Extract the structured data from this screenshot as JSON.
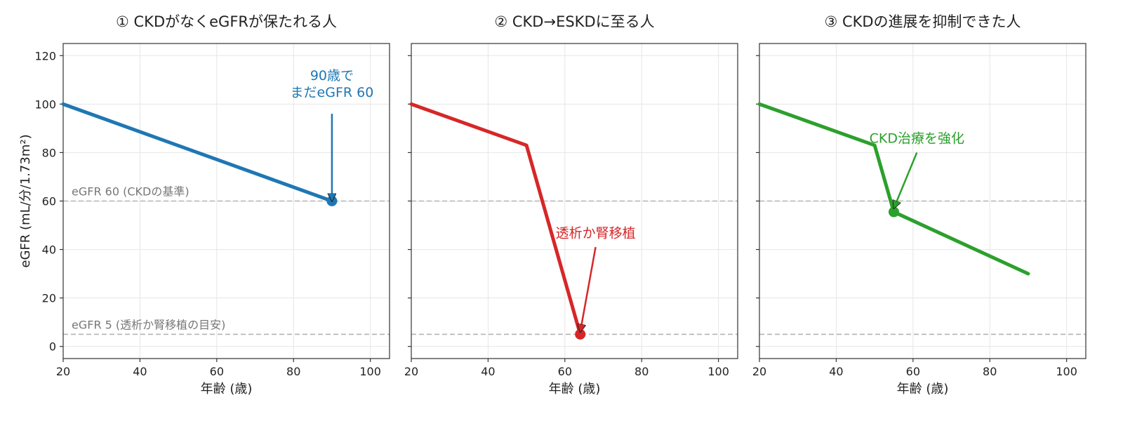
{
  "chart_data": [
    {
      "type": "line",
      "title": "① CKDがなくeGFRが保たれる人",
      "xlabel": "年齢 (歳)",
      "ylabel": "eGFR (mL/分/1.73m²)",
      "xlim": [
        20,
        105
      ],
      "ylim": [
        -5,
        125
      ],
      "xticks": [
        20,
        40,
        60,
        80,
        100
      ],
      "yticks": [
        0,
        20,
        40,
        60,
        80,
        100,
        120
      ],
      "grid": true,
      "color": "#1f77b4",
      "series": [
        {
          "x": [
            20,
            90
          ],
          "y": [
            100,
            60
          ]
        }
      ],
      "marker": {
        "x": 90,
        "y": 60
      },
      "annotation": {
        "lines": [
          "90歳で",
          "まだeGFR 60"
        ],
        "text_at": {
          "x": 90,
          "y": 103
        },
        "arrow_from": {
          "x": 90,
          "y": 96
        },
        "arrow_to": {
          "x": 90,
          "y": 60
        },
        "color": "#1f77b4"
      },
      "reference_lines": [
        {
          "y": 60,
          "label": "eGFR 60 (CKDの基準)"
        },
        {
          "y": 5,
          "label": "eGFR 5 (透析か腎移植の目安)"
        }
      ]
    },
    {
      "type": "line",
      "title": "② CKD→ESKDに至る人",
      "xlabel": "年齢 (歳)",
      "ylabel": "",
      "xlim": [
        20,
        105
      ],
      "ylim": [
        -5,
        125
      ],
      "xticks": [
        20,
        40,
        60,
        80,
        100
      ],
      "yticks": [
        0,
        20,
        40,
        60,
        80,
        100,
        120
      ],
      "grid": true,
      "color": "#d62728",
      "series": [
        {
          "x": [
            20,
            50,
            64
          ],
          "y": [
            100,
            83,
            5
          ]
        }
      ],
      "marker": {
        "x": 64,
        "y": 5
      },
      "annotation": {
        "lines": [
          "透析か腎移植"
        ],
        "text_at": {
          "x": 68,
          "y": 45
        },
        "arrow_from": {
          "x": 68,
          "y": 41
        },
        "arrow_to": {
          "x": 64,
          "y": 6
        },
        "color": "#d62728"
      },
      "reference_lines": [
        {
          "y": 60,
          "label": ""
        },
        {
          "y": 5,
          "label": ""
        }
      ]
    },
    {
      "type": "line",
      "title": "③ CKDの進展を抑制できた人",
      "xlabel": "年齢 (歳)",
      "ylabel": "",
      "xlim": [
        20,
        105
      ],
      "ylim": [
        -5,
        125
      ],
      "xticks": [
        20,
        40,
        60,
        80,
        100
      ],
      "yticks": [
        0,
        20,
        40,
        60,
        80,
        100,
        120
      ],
      "grid": true,
      "color": "#2ca02c",
      "series": [
        {
          "x": [
            20,
            50,
            55,
            90
          ],
          "y": [
            100,
            83,
            55.5,
            30
          ]
        }
      ],
      "marker": {
        "x": 55,
        "y": 55.5
      },
      "annotation": {
        "lines": [
          "CKD治療を強化"
        ],
        "text_at": {
          "x": 61,
          "y": 84
        },
        "arrow_from": {
          "x": 61,
          "y": 80
        },
        "arrow_to": {
          "x": 55,
          "y": 57
        },
        "color": "#2ca02c"
      },
      "reference_lines": [
        {
          "y": 60,
          "label": ""
        },
        {
          "y": 5,
          "label": ""
        }
      ]
    }
  ]
}
